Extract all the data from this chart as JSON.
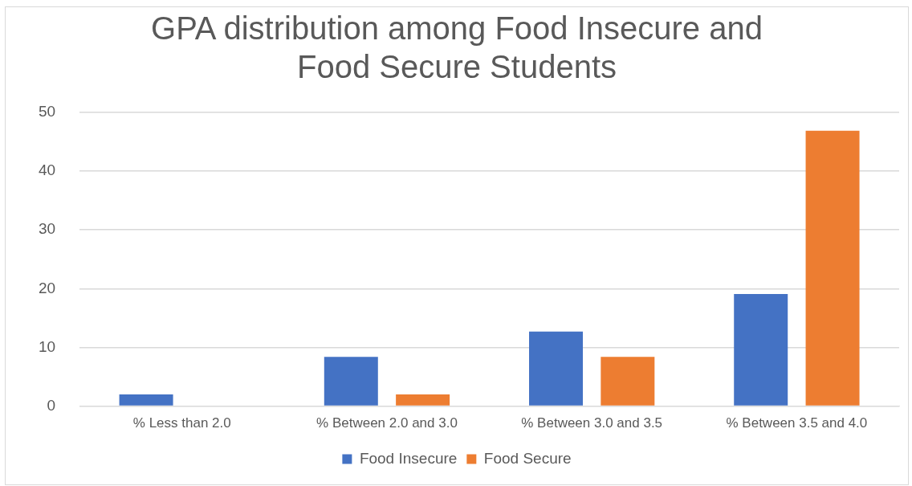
{
  "chart_data": {
    "type": "bar",
    "title": [
      "GPA distribution among Food Insecure and",
      "Food Secure Students"
    ],
    "categories": [
      "% Less than 2.0",
      "% Between 2.0 and 3.0",
      "% Between 3.0 and 3.5",
      "% Between 3.5 and 4.0"
    ],
    "series": [
      {
        "name": "Food Insecure",
        "color": "#4472c4",
        "values": [
          2.0,
          8.4,
          12.7,
          19.1
        ]
      },
      {
        "name": "Food Secure",
        "color": "#ed7d31",
        "values": [
          0,
          2.0,
          8.4,
          46.9
        ]
      }
    ],
    "ylim": [
      0,
      50
    ],
    "yticks": [
      0,
      10,
      20,
      30,
      40,
      50
    ],
    "grid": "y",
    "legend": "bottom"
  }
}
